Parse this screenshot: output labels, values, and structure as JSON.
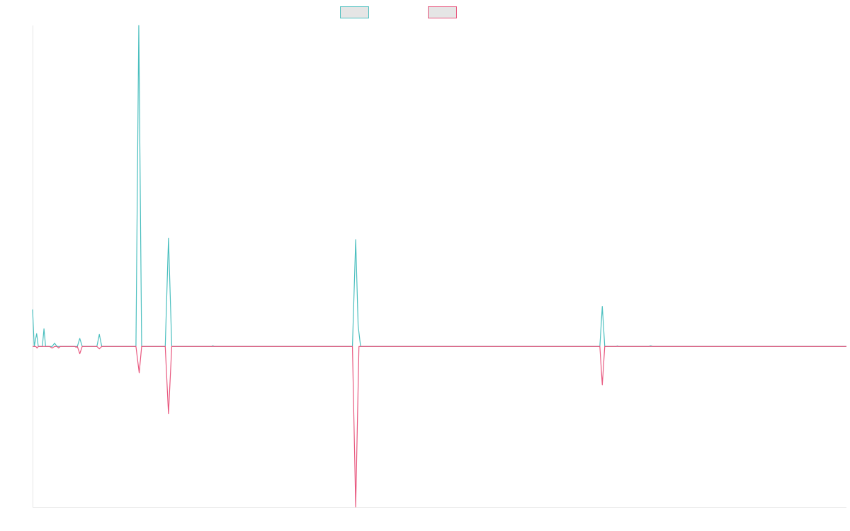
{
  "chart_data": {
    "type": "line",
    "title": "",
    "xlabel": "",
    "ylabel": "",
    "x_range": [
      0,
      1000
    ],
    "ylim": [
      -1,
      2
    ],
    "grid": false,
    "legend_placement": "top-center",
    "series": [
      {
        "color": "#4bbfbf",
        "fill": "#e5e5e5",
        "points": [
          [
            0,
            0.23
          ],
          [
            2,
            0
          ],
          [
            5,
            0.08
          ],
          [
            7,
            0
          ],
          [
            12,
            0
          ],
          [
            14,
            0.11
          ],
          [
            16,
            0
          ],
          [
            24,
            0
          ],
          [
            27,
            0.02
          ],
          [
            30,
            0
          ],
          [
            55,
            0
          ],
          [
            58,
            0.05
          ],
          [
            61,
            0
          ],
          [
            79,
            0
          ],
          [
            82,
            0.075
          ],
          [
            85,
            0
          ],
          [
            127,
            0
          ],
          [
            130.5,
            2.0
          ],
          [
            134,
            0
          ],
          [
            163,
            0
          ],
          [
            167,
            0.675
          ],
          [
            171,
            0
          ],
          [
            220,
            0
          ],
          [
            221.5,
            0.004
          ],
          [
            223,
            0
          ],
          [
            393,
            0
          ],
          [
            397,
            0.665
          ],
          [
            400,
            0.13
          ],
          [
            403,
            0
          ],
          [
            697,
            0
          ],
          [
            700,
            0.25
          ],
          [
            703,
            0
          ],
          [
            717,
            0
          ],
          [
            718.5,
            0.003
          ],
          [
            720,
            0
          ],
          [
            757,
            0
          ],
          [
            759.5,
            0.004
          ],
          [
            762,
            0
          ],
          [
            1000,
            0
          ]
        ]
      },
      {
        "color": "#e8587f",
        "fill": "#e5e5e5",
        "points": [
          [
            0,
            0
          ],
          [
            4,
            0
          ],
          [
            5.5,
            -0.01
          ],
          [
            7,
            0
          ],
          [
            21,
            0
          ],
          [
            24,
            -0.01
          ],
          [
            27,
            0
          ],
          [
            30,
            0
          ],
          [
            32,
            -0.01
          ],
          [
            34,
            0
          ],
          [
            52,
            0
          ],
          [
            53.5,
            -0.005
          ],
          [
            55,
            0
          ],
          [
            58,
            -0.045
          ],
          [
            61,
            0
          ],
          [
            79,
            0
          ],
          [
            82,
            -0.015
          ],
          [
            85,
            0
          ],
          [
            127,
            0
          ],
          [
            131,
            -0.165
          ],
          [
            134,
            0
          ],
          [
            163,
            0
          ],
          [
            167,
            -0.42
          ],
          [
            171,
            0
          ],
          [
            393,
            0
          ],
          [
            397,
            -1.0
          ],
          [
            401,
            0
          ],
          [
            697,
            0
          ],
          [
            700,
            -0.24
          ],
          [
            703,
            0
          ],
          [
            1000,
            0
          ]
        ]
      }
    ]
  }
}
